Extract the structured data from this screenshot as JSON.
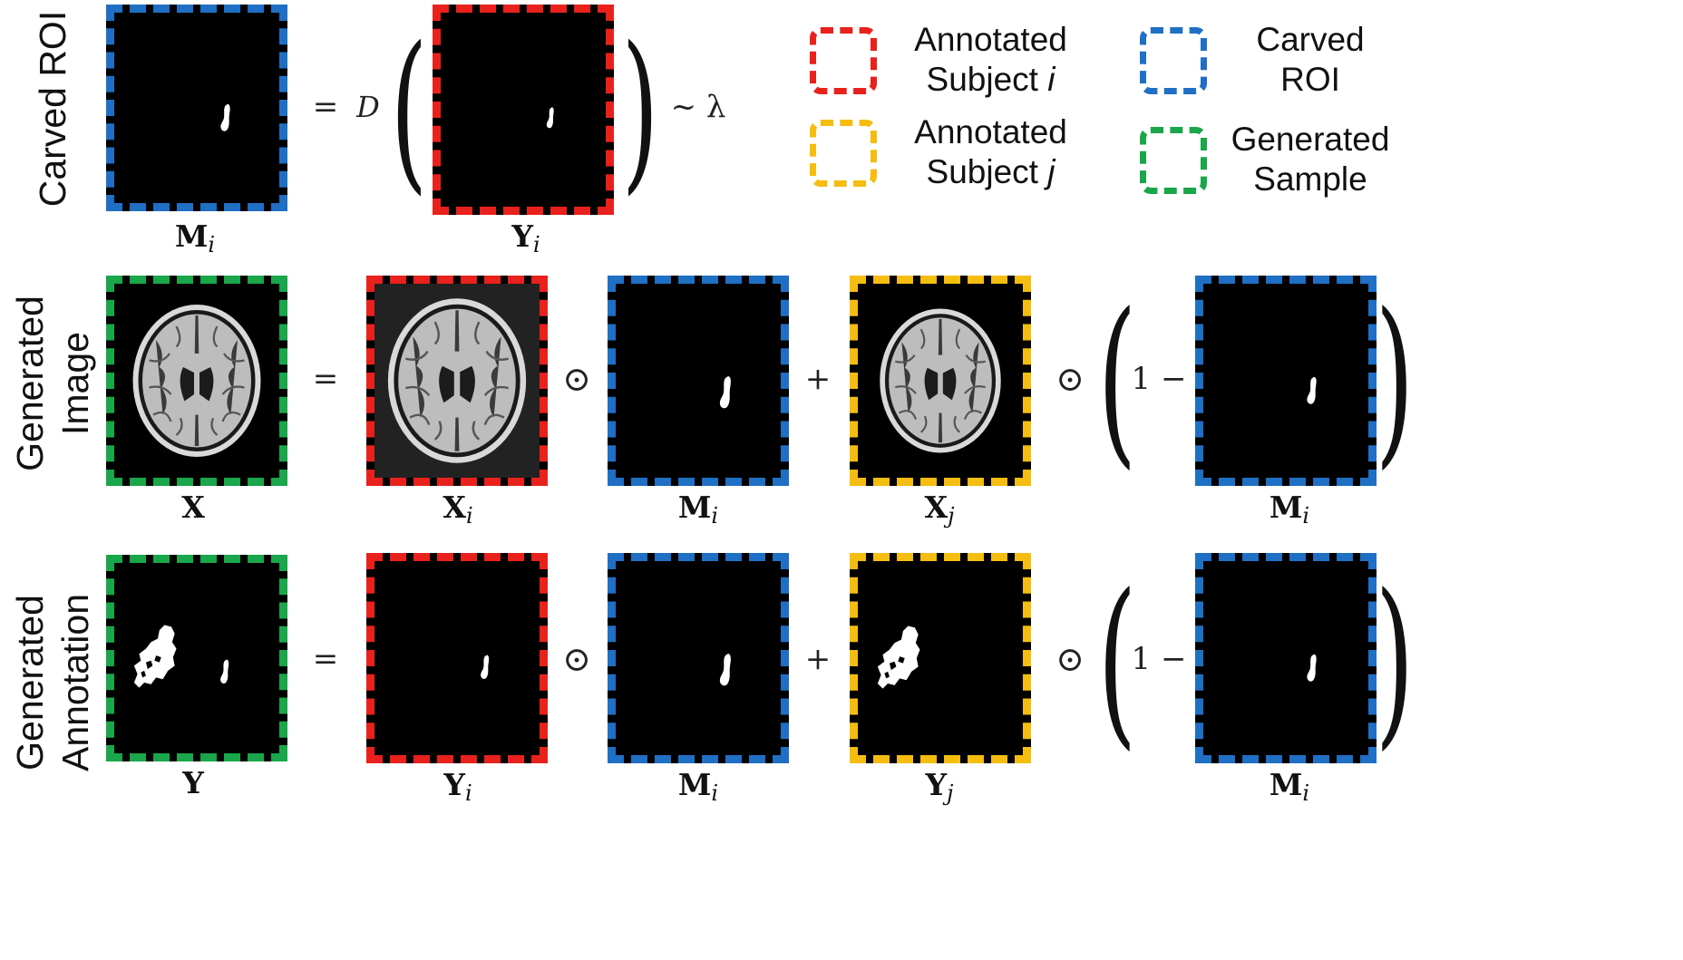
{
  "colors": {
    "annotated_i": "#e8211c",
    "annotated_j": "#f5bd0f",
    "carved": "#1f6fc4",
    "generated": "#1aa64a"
  },
  "legend": {
    "annotated_i": {
      "line1": "Annotated",
      "line2_prefix": "Subject ",
      "line2_var": "i"
    },
    "annotated_j": {
      "line1": "Annotated",
      "line2_prefix": "Subject ",
      "line2_var": "j"
    },
    "carved": {
      "line1": "Carved",
      "line2": "ROI"
    },
    "generated": {
      "line1": "Generated",
      "line2": "Sample"
    }
  },
  "rows": {
    "carved": {
      "label": "Carved ROI"
    },
    "image": {
      "label_line1": "Generated",
      "label_line2": "Image"
    },
    "annotation": {
      "label_line1": "Generated",
      "label_line2": "Annotation"
    }
  },
  "symbols": {
    "equals": "=",
    "D": "D",
    "tilde_lambda": "~ λ",
    "odot": "⊙",
    "plus": "+",
    "one_minus": "1 −"
  },
  "captions": {
    "M": "M",
    "Y": "Y",
    "X": "X",
    "sub_i": "i",
    "sub_j": "j"
  },
  "icons": {
    "panel_content_mask": "lesion-mask-icon",
    "panel_content_brain": "brain-mri-icon",
    "panel_content_large_lesion": "large-lesion-mask-icon"
  }
}
